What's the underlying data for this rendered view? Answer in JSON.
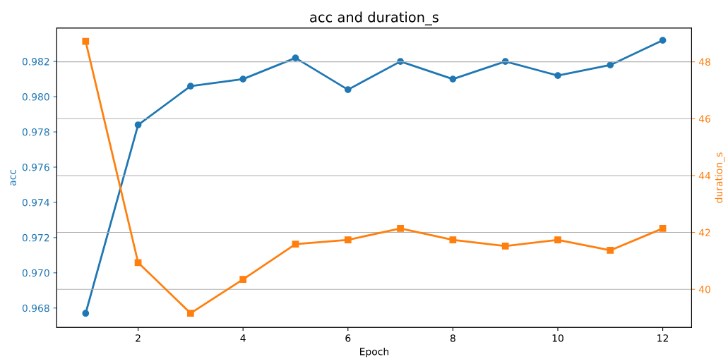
{
  "chart_data": {
    "type": "line",
    "title": "acc and duration_s",
    "xlabel": "Epoch",
    "ylabel": "acc",
    "y2label": "duration_s",
    "x": [
      1,
      2,
      3,
      4,
      5,
      6,
      7,
      8,
      9,
      10,
      11,
      12
    ],
    "series": [
      {
        "color": "#1f77b4",
        "marker": "circle",
        "values": [
          0.9677,
          0.9784,
          0.9806,
          0.981,
          0.9822,
          0.9804,
          0.982,
          0.981,
          0.982,
          0.9812,
          0.9818,
          0.9832
        ]
      },
      {
        "color": "#ff7f0e",
        "marker": "square",
        "axis": "y2",
        "values": [
          48.72,
          40.94,
          39.16,
          40.35,
          41.59,
          41.74,
          42.14,
          41.74,
          41.52,
          41.74,
          41.37,
          42.14
        ]
      }
    ],
    "xlim": [
      0.45,
      12.55
    ],
    "xticks": [
      2,
      4,
      6,
      8,
      10,
      12
    ],
    "ylim": [
      0.9669,
      0.9839
    ],
    "yticks": [
      {
        "value": 0.968,
        "label": "0.968"
      },
      {
        "value": 0.97,
        "label": "0.970"
      },
      {
        "value": 0.972,
        "label": "0.972"
      },
      {
        "value": 0.974,
        "label": "0.974"
      },
      {
        "value": 0.976,
        "label": "0.976"
      },
      {
        "value": 0.978,
        "label": "0.978"
      },
      {
        "value": 0.98,
        "label": "0.980"
      },
      {
        "value": 0.982,
        "label": "0.982"
      }
    ],
    "y2lim": [
      38.66,
      49.19
    ],
    "y2ticks": [
      40,
      42,
      44,
      46,
      48
    ],
    "grid": "y2",
    "legend": false,
    "line_style": "solid"
  }
}
